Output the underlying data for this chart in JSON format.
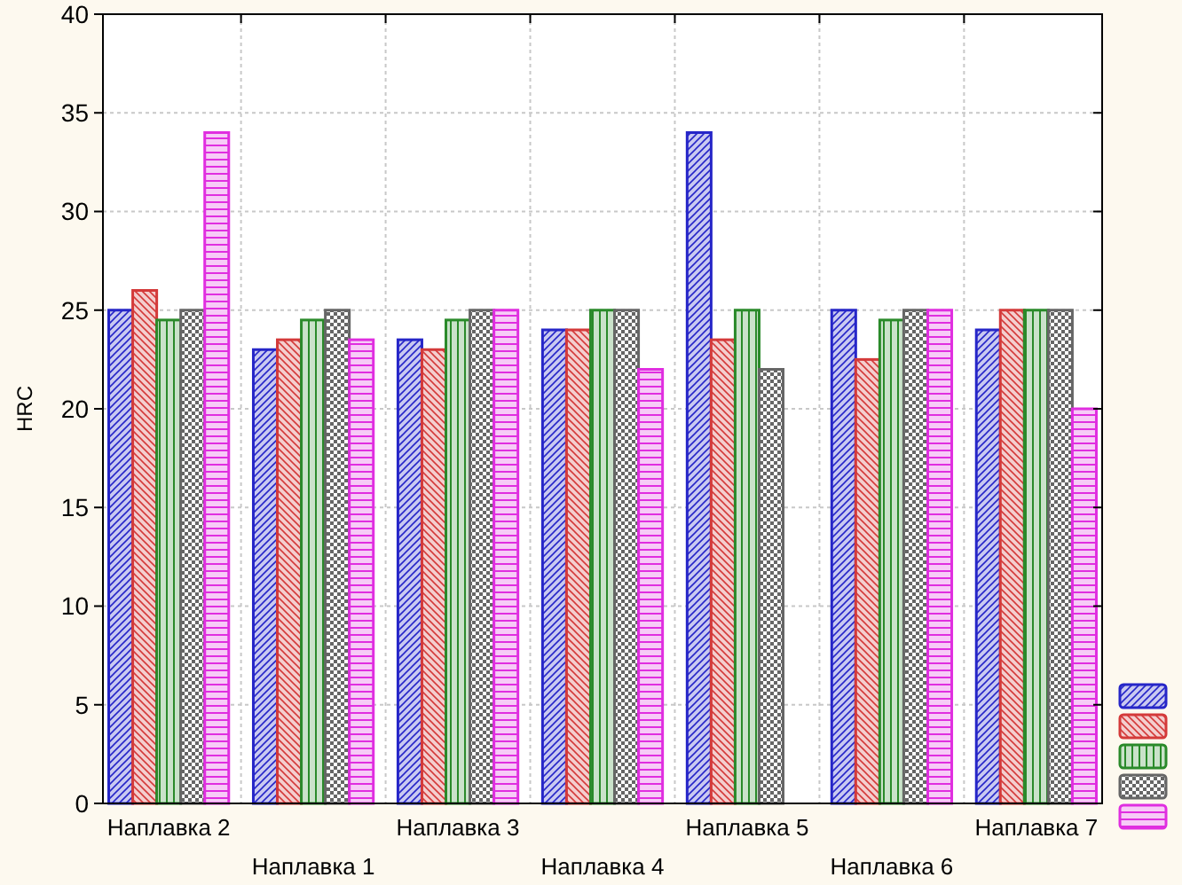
{
  "chart_data": {
    "type": "bar",
    "ylabel": "HRC",
    "categories": [
      "Наплавка 2",
      "Наплавка 1",
      "Наплавка 3",
      "Наплавка 4",
      "Наплавка 5",
      "Наплавка 6",
      "Наплавка 7"
    ],
    "series": [
      {
        "color": "#2626c8",
        "values": [
          25,
          23,
          23.5,
          24,
          34,
          25,
          24
        ]
      },
      {
        "color": "#d43a3a",
        "values": [
          26,
          23.5,
          23,
          24,
          23.5,
          22.5,
          25
        ]
      },
      {
        "color": "#2a8a2a",
        "values": [
          24.5,
          24.5,
          24.5,
          25,
          25,
          24.5,
          25
        ]
      },
      {
        "color": "#666666",
        "values": [
          25,
          25,
          25,
          25,
          22,
          25,
          25
        ]
      },
      {
        "color": "#e02ee0",
        "values": [
          34,
          23.5,
          25,
          22,
          null,
          25,
          20
        ]
      }
    ],
    "ylim": [
      0,
      40
    ],
    "yticks": [
      0,
      5,
      10,
      15,
      20,
      25,
      30,
      35,
      40
    ],
    "grid": true
  }
}
